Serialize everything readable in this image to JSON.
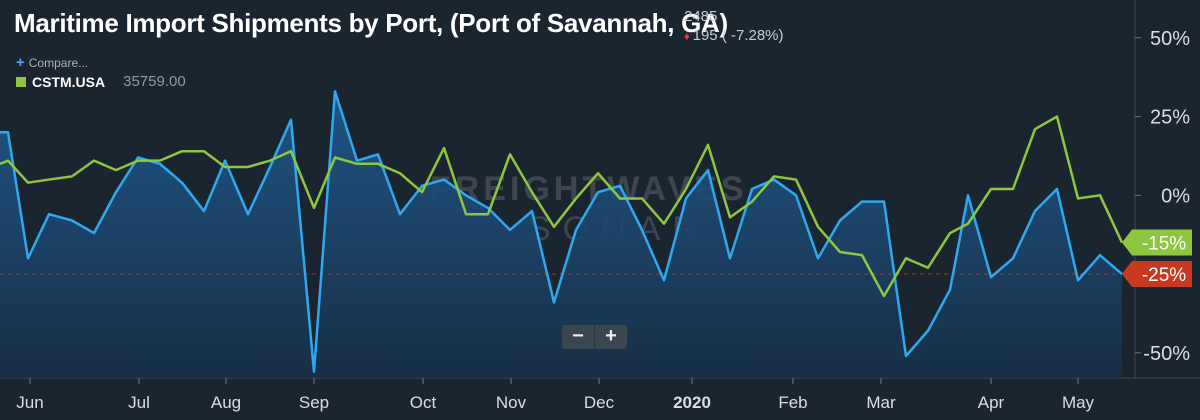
{
  "header": {
    "title": "Maritime Import Shipments by Port, (Port of Savannah, GA)",
    "value": "2485",
    "change": "195 ( -7.28%)",
    "compare_label": "Compare...",
    "legend_symbol": "CSTM.USA",
    "legend_value": "35759.00"
  },
  "colors": {
    "background": "#1b2530",
    "primary_line": "#2fa8f0",
    "primary_fill_top": "#1f4f7d",
    "secondary_line": "#8dc63f",
    "last_red": "#c8391f",
    "last_green": "#8dc63f"
  },
  "watermark": {
    "top": "FREIGHTWAVES",
    "bottom": "SONAR"
  },
  "zoom": {
    "minus": "−",
    "plus": "+"
  },
  "chart_data": {
    "type": "line",
    "y_unit": "%",
    "ylim": [
      -58,
      62
    ],
    "y_ticks": [
      {
        "v": 50,
        "label": "50%"
      },
      {
        "v": 25,
        "label": "25%"
      },
      {
        "v": 0,
        "label": "0%"
      },
      {
        "v": -50,
        "label": "-50%"
      }
    ],
    "x_range": [
      0,
      1135
    ],
    "x_ticks": [
      {
        "x": 30,
        "label": "Jun",
        "bold": false
      },
      {
        "x": 139,
        "label": "Jul",
        "bold": false
      },
      {
        "x": 226,
        "label": "Aug",
        "bold": false
      },
      {
        "x": 314,
        "label": "Sep",
        "bold": false
      },
      {
        "x": 423,
        "label": "Oct",
        "bold": false
      },
      {
        "x": 511,
        "label": "Nov",
        "bold": false
      },
      {
        "x": 599,
        "label": "Dec",
        "bold": false
      },
      {
        "x": 692,
        "label": "2020",
        "bold": true
      },
      {
        "x": 793,
        "label": "Feb",
        "bold": false
      },
      {
        "x": 881,
        "label": "Mar",
        "bold": false
      },
      {
        "x": 991,
        "label": "Apr",
        "bold": false
      },
      {
        "x": 1078,
        "label": "May",
        "bold": false
      }
    ],
    "series": [
      {
        "values": [
          [
            0,
            20
          ],
          [
            8,
            20
          ],
          [
            28,
            -20
          ],
          [
            49,
            -6
          ],
          [
            72,
            -8
          ],
          [
            94,
            -12
          ],
          [
            116,
            1
          ],
          [
            138,
            12
          ],
          [
            160,
            10
          ],
          [
            182,
            4
          ],
          [
            204,
            -5
          ],
          [
            225,
            11
          ],
          [
            248,
            -6
          ],
          [
            270,
            9
          ],
          [
            291,
            24
          ],
          [
            314,
            -56
          ],
          [
            335,
            33
          ],
          [
            357,
            11
          ],
          [
            378,
            13
          ],
          [
            400,
            -6
          ],
          [
            422,
            3
          ],
          [
            444,
            5
          ],
          [
            466,
            0
          ],
          [
            488,
            -4
          ],
          [
            510,
            -11
          ],
          [
            532,
            -5
          ],
          [
            554,
            -34
          ],
          [
            576,
            -11
          ],
          [
            598,
            1
          ],
          [
            620,
            3
          ],
          [
            642,
            -11
          ],
          [
            664,
            -27
          ],
          [
            686,
            -1
          ],
          [
            708,
            8
          ],
          [
            730,
            -20
          ],
          [
            752,
            2
          ],
          [
            774,
            5
          ],
          [
            796,
            0
          ],
          [
            818,
            -20
          ],
          [
            840,
            -8
          ],
          [
            862,
            -2
          ],
          [
            884,
            -2
          ],
          [
            906,
            -51
          ],
          [
            928,
            -43
          ],
          [
            950,
            -30
          ],
          [
            968,
            0
          ],
          [
            991,
            -26
          ],
          [
            1013,
            -20
          ],
          [
            1035,
            -5
          ],
          [
            1057,
            2
          ],
          [
            1078,
            -27
          ],
          [
            1100,
            -19
          ],
          [
            1122,
            -25
          ]
        ],
        "last": "-25%"
      },
      {
        "values": [
          [
            0,
            10
          ],
          [
            8,
            11
          ],
          [
            28,
            4
          ],
          [
            49,
            5
          ],
          [
            72,
            6
          ],
          [
            94,
            11
          ],
          [
            116,
            8
          ],
          [
            138,
            11
          ],
          [
            160,
            11
          ],
          [
            182,
            14
          ],
          [
            204,
            14
          ],
          [
            225,
            9
          ],
          [
            248,
            9
          ],
          [
            270,
            11
          ],
          [
            291,
            14
          ],
          [
            314,
            -4
          ],
          [
            335,
            12
          ],
          [
            357,
            10
          ],
          [
            378,
            10
          ],
          [
            400,
            7
          ],
          [
            422,
            1
          ],
          [
            444,
            15
          ],
          [
            466,
            -6
          ],
          [
            488,
            -6
          ],
          [
            510,
            13
          ],
          [
            532,
            1
          ],
          [
            554,
            -10
          ],
          [
            576,
            -1
          ],
          [
            598,
            7
          ],
          [
            620,
            -1
          ],
          [
            642,
            -1
          ],
          [
            664,
            -9
          ],
          [
            686,
            2
          ],
          [
            708,
            16
          ],
          [
            730,
            -7
          ],
          [
            752,
            -2
          ],
          [
            774,
            6
          ],
          [
            796,
            5
          ],
          [
            818,
            -10
          ],
          [
            840,
            -18
          ],
          [
            862,
            -19
          ],
          [
            884,
            -32
          ],
          [
            906,
            -20
          ],
          [
            928,
            -23
          ],
          [
            950,
            -12
          ],
          [
            968,
            -9
          ],
          [
            991,
            2
          ],
          [
            1013,
            2
          ],
          [
            1035,
            21
          ],
          [
            1057,
            25
          ],
          [
            1078,
            -1
          ],
          [
            1100,
            0
          ],
          [
            1122,
            -15
          ]
        ],
        "last": "-15%"
      }
    ]
  }
}
